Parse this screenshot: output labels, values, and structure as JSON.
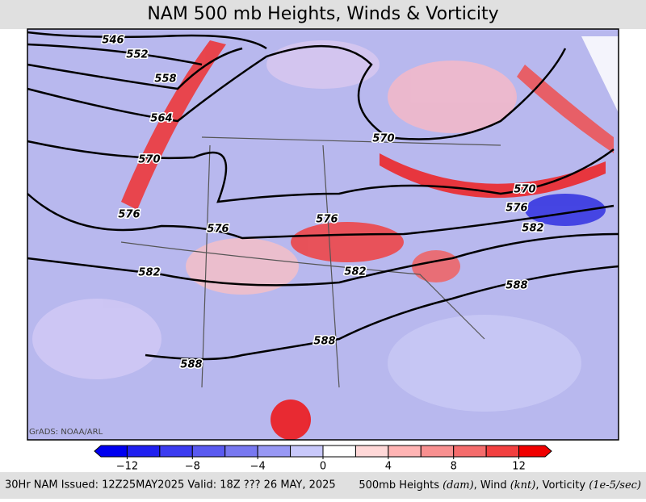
{
  "header": {
    "title": "NAM 500 mb Heights, Winds & Vorticity"
  },
  "map": {
    "credit": "GrADS: NOAA/ARL",
    "contour_labels": [
      546,
      552,
      558,
      564,
      570,
      570,
      570,
      576,
      576,
      576,
      576,
      582,
      582,
      582,
      588,
      588,
      588
    ]
  },
  "colorbar": {
    "range": [
      -14,
      14
    ],
    "colors": [
      "#0000f0",
      "#2020f0",
      "#3c3cf0",
      "#5a5af0",
      "#7878f0",
      "#9898f4",
      "#c8c8fa",
      "#ffffff",
      "#ffd8d8",
      "#ffb4b4",
      "#f89090",
      "#f46c6c",
      "#f24040",
      "#f00000"
    ],
    "ticks": [
      {
        "value": -12,
        "label": "−12"
      },
      {
        "value": -8,
        "label": "−8"
      },
      {
        "value": -4,
        "label": "−4"
      },
      0,
      4,
      8,
      12
    ]
  },
  "footer": {
    "left": "30Hr NAM Issued: 12Z25MAY2025 Valid: 18Z ??? 26 MAY, 2025",
    "right": [
      "500mb Heights ",
      "(dam)",
      ", Wind ",
      "(knt)",
      ", Vorticity ",
      "(1e-5/sec)"
    ]
  }
}
